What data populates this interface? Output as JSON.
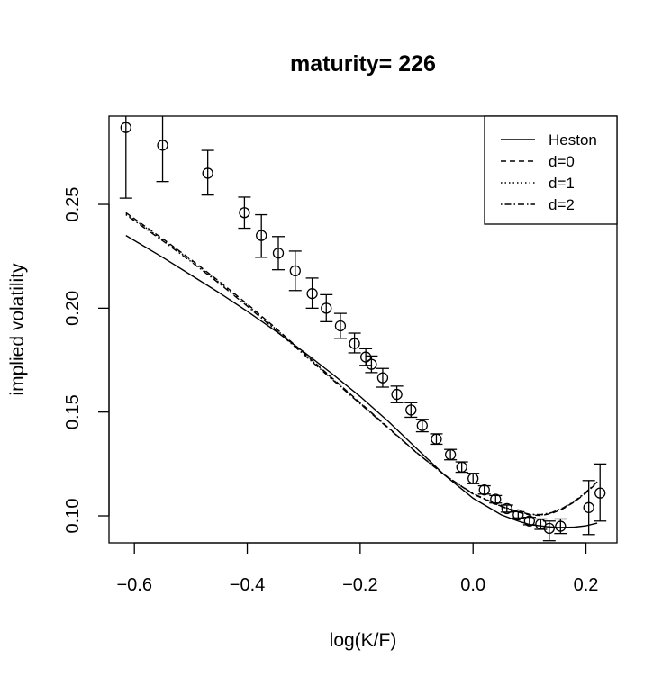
{
  "chart_data": {
    "type": "line",
    "title": "maturity= 226",
    "xlabel": "log(K/F)",
    "ylabel": "implied volatility",
    "xlim": [
      -0.645,
      0.255
    ],
    "ylim": [
      0.087,
      0.2925
    ],
    "x_ticks": [
      -0.6,
      -0.4,
      -0.2,
      0.0,
      0.2
    ],
    "x_tick_labels": [
      "−0.6",
      "−0.4",
      "−0.2",
      "0.0",
      "0.2"
    ],
    "y_ticks": [
      0.1,
      0.15,
      0.2,
      0.25
    ],
    "y_tick_labels": [
      "0.10",
      "0.15",
      "0.20",
      "0.25"
    ],
    "grid": false,
    "legend_position": "top-right",
    "legend": [
      {
        "label": "Heston",
        "dash": "solid"
      },
      {
        "label": "d=0",
        "dash": "dashed"
      },
      {
        "label": "d=1",
        "dash": "dotted"
      },
      {
        "label": "d=2",
        "dash": "dotdash"
      }
    ],
    "series": [
      {
        "name": "Heston",
        "dash": "solid",
        "x": [
          -0.615,
          -0.55,
          -0.5,
          -0.45,
          -0.4,
          -0.35,
          -0.3,
          -0.25,
          -0.2,
          -0.15,
          -0.1,
          -0.05,
          0.0,
          0.05,
          0.08,
          0.1,
          0.13,
          0.15,
          0.18,
          0.2,
          0.22
        ],
        "y": [
          0.235,
          0.2245,
          0.216,
          0.2075,
          0.1985,
          0.189,
          0.179,
          0.1685,
          0.1575,
          0.1455,
          0.1325,
          0.1195,
          0.1085,
          0.1005,
          0.0975,
          0.0958,
          0.0948,
          0.0944,
          0.0946,
          0.0952,
          0.0965
        ]
      },
      {
        "name": "d=0",
        "dash": "dashed",
        "x": [
          -0.615,
          -0.55,
          -0.5,
          -0.45,
          -0.4,
          -0.35,
          -0.3,
          -0.25,
          -0.2,
          -0.15,
          -0.1,
          -0.05,
          0.0,
          0.05,
          0.08,
          0.1,
          0.12,
          0.14,
          0.16,
          0.18,
          0.2,
          0.22
        ],
        "y": [
          0.246,
          0.2335,
          0.2235,
          0.213,
          0.202,
          0.1905,
          0.1785,
          0.1665,
          0.1545,
          0.1425,
          0.1305,
          0.1195,
          0.1105,
          0.1045,
          0.1018,
          0.1005,
          0.1002,
          0.1012,
          0.1035,
          0.1068,
          0.111,
          0.116
        ]
      },
      {
        "name": "d=1",
        "dash": "dotted",
        "x": [
          -0.615,
          -0.55,
          -0.5,
          -0.45,
          -0.4,
          -0.35,
          -0.3,
          -0.25,
          -0.2,
          -0.15,
          -0.1,
          -0.05,
          0.0,
          0.05,
          0.08,
          0.1,
          0.12,
          0.14,
          0.16,
          0.18,
          0.2,
          0.22
        ],
        "y": [
          0.2455,
          0.233,
          0.223,
          0.2125,
          0.2015,
          0.19,
          0.1782,
          0.1662,
          0.1543,
          0.1424,
          0.1305,
          0.1196,
          0.1106,
          0.1046,
          0.102,
          0.1007,
          0.1004,
          0.1014,
          0.1037,
          0.107,
          0.1112,
          0.1162
        ]
      },
      {
        "name": "d=2",
        "dash": "dotdash",
        "x": [
          -0.615,
          -0.55,
          -0.5,
          -0.45,
          -0.4,
          -0.35,
          -0.3,
          -0.25,
          -0.2,
          -0.15,
          -0.1,
          -0.05,
          0.0,
          0.05,
          0.08,
          0.1,
          0.12,
          0.14,
          0.16,
          0.18,
          0.2,
          0.22
        ],
        "y": [
          0.245,
          0.2325,
          0.2225,
          0.212,
          0.201,
          0.1895,
          0.1778,
          0.1658,
          0.154,
          0.1422,
          0.1304,
          0.1196,
          0.1107,
          0.1047,
          0.1021,
          0.1008,
          0.1006,
          0.1016,
          0.1039,
          0.1072,
          0.1114,
          0.1164
        ]
      }
    ],
    "observed": {
      "x": [
        -0.615,
        -0.55,
        -0.47,
        -0.405,
        -0.375,
        -0.345,
        -0.315,
        -0.285,
        -0.26,
        -0.235,
        -0.21,
        -0.19,
        -0.18,
        -0.16,
        -0.135,
        -0.11,
        -0.09,
        -0.065,
        -0.04,
        -0.02,
        0.0,
        0.02,
        0.04,
        0.06,
        0.08,
        0.1,
        0.12,
        0.135,
        0.155,
        0.205,
        0.225
      ],
      "y": [
        0.287,
        0.2785,
        0.265,
        0.246,
        0.235,
        0.2265,
        0.218,
        0.207,
        0.2,
        0.1915,
        0.183,
        0.1765,
        0.173,
        0.1665,
        0.1585,
        0.151,
        0.1435,
        0.137,
        0.1295,
        0.1235,
        0.118,
        0.1125,
        0.108,
        0.1035,
        0.1005,
        0.0975,
        0.096,
        0.094,
        0.095,
        0.104,
        0.111
      ],
      "upper": [
        0.31,
        0.296,
        0.276,
        0.2535,
        0.245,
        0.2345,
        0.2275,
        0.2145,
        0.2065,
        0.1975,
        0.188,
        0.1805,
        0.177,
        0.171,
        0.1625,
        0.1545,
        0.1465,
        0.1395,
        0.132,
        0.126,
        0.1205,
        0.1145,
        0.1098,
        0.1052,
        0.102,
        0.0993,
        0.0985,
        0.0975,
        0.0985,
        0.117,
        0.125
      ],
      "lower": [
        0.253,
        0.261,
        0.2545,
        0.2385,
        0.2245,
        0.2185,
        0.2085,
        0.2,
        0.1935,
        0.1855,
        0.1785,
        0.1725,
        0.169,
        0.162,
        0.1545,
        0.1475,
        0.1405,
        0.1345,
        0.127,
        0.121,
        0.1155,
        0.1105,
        0.1062,
        0.1018,
        0.099,
        0.0957,
        0.0935,
        0.088,
        0.0915,
        0.091,
        0.0975
      ]
    }
  }
}
